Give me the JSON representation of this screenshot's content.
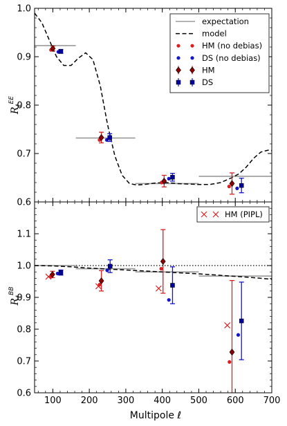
{
  "chart_data": [
    {
      "type": "line",
      "panel": "top",
      "ylabel_main": "R",
      "ylabel_sub": "ℓ",
      "ylabel_sup": "EE",
      "xlim": [
        50,
        700
      ],
      "ylim": [
        0.6,
        1.0
      ],
      "yticks": [
        "0.6",
        "0.7",
        "0.8",
        "0.9",
        "1.0"
      ],
      "legend": {
        "placement": "top-right",
        "entries": [
          "expectation",
          "model",
          "HM (no debias)",
          "DS (no debias)",
          "HM",
          "DS"
        ]
      },
      "model_curve": {
        "x": [
          50,
          70,
          90,
          110,
          130,
          150,
          170,
          190,
          210,
          230,
          250,
          270,
          290,
          310,
          330,
          350,
          380,
          410,
          440,
          470,
          500,
          530,
          560,
          590,
          610,
          630,
          650,
          670,
          690,
          700
        ],
        "y": [
          0.99,
          0.97,
          0.935,
          0.9,
          0.882,
          0.882,
          0.897,
          0.908,
          0.894,
          0.84,
          0.76,
          0.695,
          0.655,
          0.638,
          0.635,
          0.636,
          0.639,
          0.64,
          0.638,
          0.637,
          0.636,
          0.636,
          0.64,
          0.65,
          0.658,
          0.672,
          0.69,
          0.703,
          0.707,
          0.706
        ]
      },
      "expectation_bins": [
        {
          "x0": 50,
          "x1": 163,
          "y": 0.923
        },
        {
          "x0": 163,
          "x1": 326,
          "y": 0.732
        },
        {
          "x0": 326,
          "x1": 500,
          "y": 0.638
        },
        {
          "x0": 500,
          "x1": 700,
          "y": 0.653
        }
      ],
      "hm_no_debias": {
        "x": [
          95,
          228,
          398,
          583
        ],
        "y": [
          0.914,
          0.728,
          0.64,
          0.632
        ]
      },
      "ds_no_debias": {
        "x": [
          115,
          248,
          418,
          605
        ],
        "y": [
          0.91,
          0.728,
          0.648,
          0.628
        ]
      },
      "hm": {
        "x": [
          100,
          233,
          405,
          591
        ],
        "y": [
          0.917,
          0.733,
          0.643,
          0.638
        ],
        "err": [
          0.005,
          0.011,
          0.012,
          0.022
        ]
      },
      "ds": {
        "x": [
          122,
          256,
          428,
          617
        ],
        "y": [
          0.911,
          0.733,
          0.651,
          0.634
        ],
        "err": [
          0.004,
          0.008,
          0.008,
          0.015
        ]
      }
    },
    {
      "type": "line",
      "panel": "bottom",
      "xlabel": "Multipole ℓ",
      "ylabel_main": "R",
      "ylabel_sub": "ℓ",
      "ylabel_sup": "BB",
      "xlim": [
        50,
        700
      ],
      "ylim": [
        0.6,
        1.2
      ],
      "xticks": [
        "100",
        "200",
        "300",
        "400",
        "500",
        "600",
        "700"
      ],
      "yticks": [
        "0.6",
        "0.7",
        "0.8",
        "0.9",
        "1.0",
        "1.1"
      ],
      "legend": {
        "placement": "top-right",
        "entries": [
          "HM (PIPL)"
        ]
      },
      "reference_line": 1.0,
      "model_curve": {
        "x": [
          50,
          100,
          150,
          200,
          250,
          300,
          350,
          400,
          450,
          500,
          550,
          600,
          650,
          700
        ],
        "y": [
          1.0,
          0.999,
          0.996,
          0.992,
          0.989,
          0.986,
          0.983,
          0.98,
          0.977,
          0.974,
          0.97,
          0.966,
          0.962,
          0.957
        ]
      },
      "expectation_bins": [
        {
          "x0": 50,
          "x1": 163,
          "y": 1.0
        },
        {
          "x0": 163,
          "x1": 326,
          "y": 0.99
        },
        {
          "x0": 326,
          "x1": 500,
          "y": 0.98
        },
        {
          "x0": 500,
          "x1": 700,
          "y": 0.967
        }
      ],
      "hm_pipl": {
        "x": [
          88,
          225,
          390,
          578
        ],
        "y": [
          0.965,
          0.935,
          0.928,
          0.812
        ]
      },
      "hm_no_debias": {
        "x": [
          95,
          228,
          397,
          584
        ],
        "y": [
          0.965,
          0.94,
          0.99,
          0.697
        ]
      },
      "ds_no_debias": {
        "x": [
          113,
          249,
          418,
          608
        ],
        "y": [
          0.975,
          0.985,
          0.892,
          0.782
        ]
      },
      "hm": {
        "x": [
          99,
          233,
          402,
          591
        ],
        "y": [
          0.972,
          0.952,
          1.013,
          0.728
        ],
        "err": [
          0.01,
          0.032,
          0.1,
          0.225
        ]
      },
      "ds": {
        "x": [
          122,
          257,
          428,
          617
        ],
        "y": [
          0.978,
          0.998,
          0.938,
          0.826
        ],
        "err": [
          0.008,
          0.02,
          0.058,
          0.122
        ]
      }
    }
  ],
  "colors": {
    "hm": "#d91f1f",
    "ds": "#1414c8",
    "expectation": "#999999",
    "model": "#000000"
  }
}
